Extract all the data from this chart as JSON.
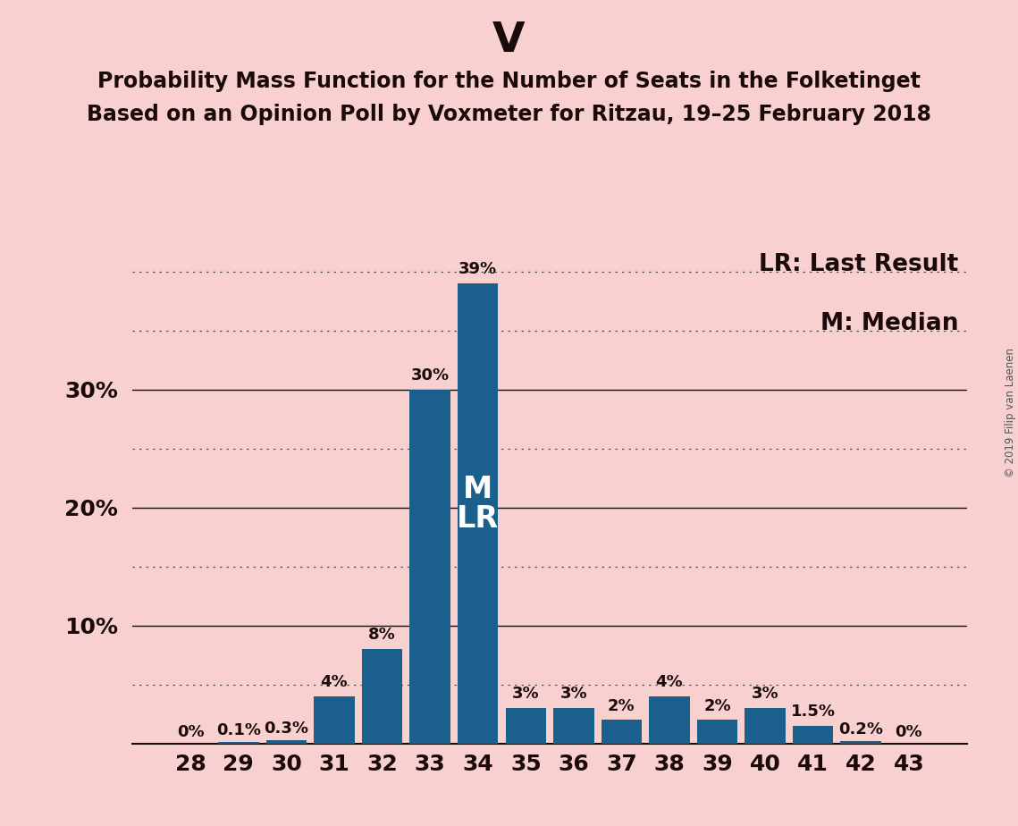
{
  "title": "V",
  "subtitle_line1": "Probability Mass Function for the Number of Seats in the Folketinget",
  "subtitle_line2": "Based on an Opinion Poll by Voxmeter for Ritzau, 19–25 February 2018",
  "copyright_text": "© 2019 Filip van Laenen",
  "legend_line1": "LR: Last Result",
  "legend_line2": "M: Median",
  "background_color": "#f9d0d0",
  "bar_color": "#1b5f8c",
  "categories": [
    28,
    29,
    30,
    31,
    32,
    33,
    34,
    35,
    36,
    37,
    38,
    39,
    40,
    41,
    42,
    43
  ],
  "values": [
    0.0,
    0.1,
    0.3,
    4.0,
    8.0,
    30.0,
    39.0,
    3.0,
    3.0,
    2.0,
    4.0,
    2.0,
    3.0,
    1.5,
    0.2,
    0.0
  ],
  "labels": [
    "0%",
    "0.1%",
    "0.3%",
    "4%",
    "8%",
    "30%",
    "39%",
    "3%",
    "3%",
    "2%",
    "4%",
    "2%",
    "3%",
    "1.5%",
    "0.2%",
    "0%"
  ],
  "median_bar": 34,
  "last_result_bar": 34,
  "median_label": "M",
  "last_result_label": "LR",
  "ylim": [
    0,
    42
  ],
  "yticks": [
    10,
    20,
    30
  ],
  "ytick_labels": [
    "10%",
    "20%",
    "30%"
  ],
  "solid_yticks": [
    10,
    20,
    30
  ],
  "dotted_yticks": [
    5,
    15,
    25,
    35,
    40
  ],
  "title_fontsize": 34,
  "subtitle_fontsize": 17,
  "label_fontsize": 13,
  "tick_fontsize": 18,
  "legend_fontsize": 19,
  "axis_label_color": "#1a0a0a"
}
